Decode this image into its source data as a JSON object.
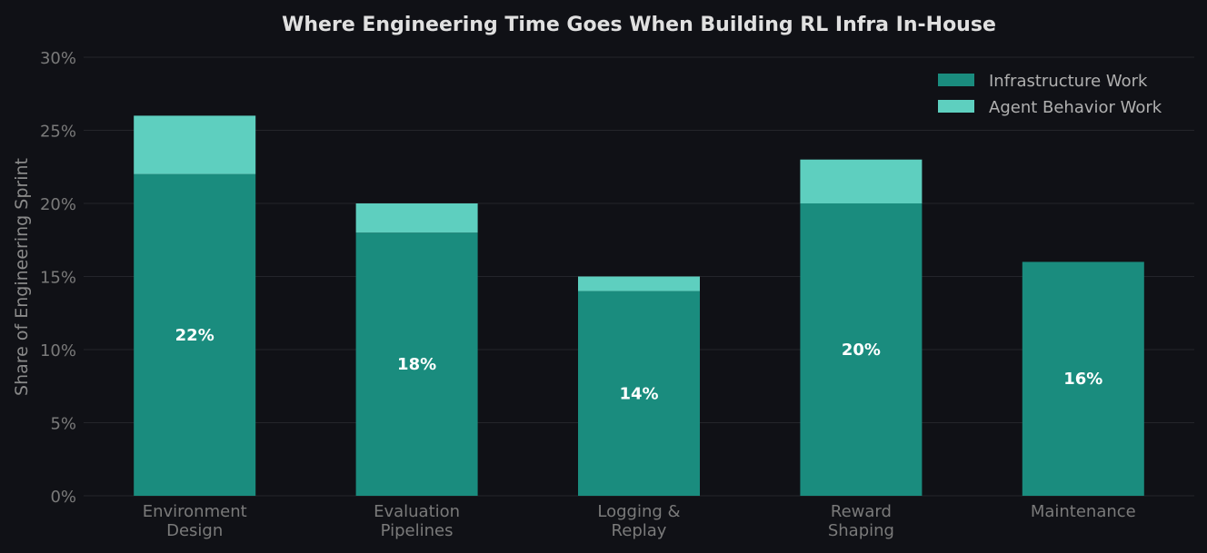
{
  "chart_data": {
    "type": "bar",
    "stacked": true,
    "title": "Where Engineering Time Goes When Building RL Infra In-House",
    "xlabel": "",
    "ylabel": "Share of Engineering Sprint",
    "ylim": [
      0,
      30
    ],
    "yticks": [
      "0%",
      "5%",
      "10%",
      "15%",
      "20%",
      "25%",
      "30%"
    ],
    "grid": true,
    "legend_position": "top-right",
    "categories": [
      [
        "Environment",
        "Design"
      ],
      [
        "Evaluation",
        "Pipelines"
      ],
      [
        "Logging &",
        "Replay"
      ],
      [
        "Reward",
        "Shaping"
      ],
      [
        "Maintenance"
      ]
    ],
    "series": [
      {
        "name": "Infrastructure Work",
        "color": "#1a8c7e",
        "values": [
          22,
          18,
          14,
          20,
          16
        ],
        "labels": [
          "22%",
          "18%",
          "14%",
          "20%",
          "16%"
        ]
      },
      {
        "name": "Agent Behavior Work",
        "color": "#5ecfbf",
        "values": [
          4,
          2,
          1,
          3,
          0
        ]
      }
    ],
    "background": "#101116"
  }
}
